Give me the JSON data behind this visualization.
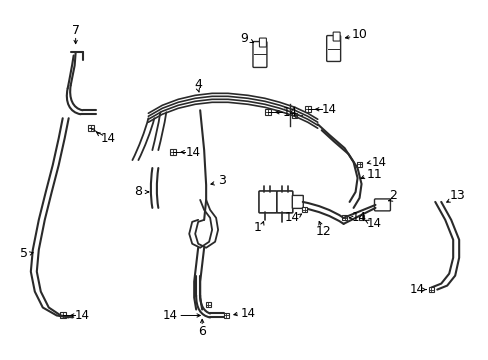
{
  "bg_color": "#ffffff",
  "line_color": "#2a2a2a",
  "text_color": "#000000",
  "figsize": [
    4.89,
    3.6
  ],
  "dpi": 100,
  "xlim": [
    0,
    489
  ],
  "ylim": [
    360,
    0
  ]
}
